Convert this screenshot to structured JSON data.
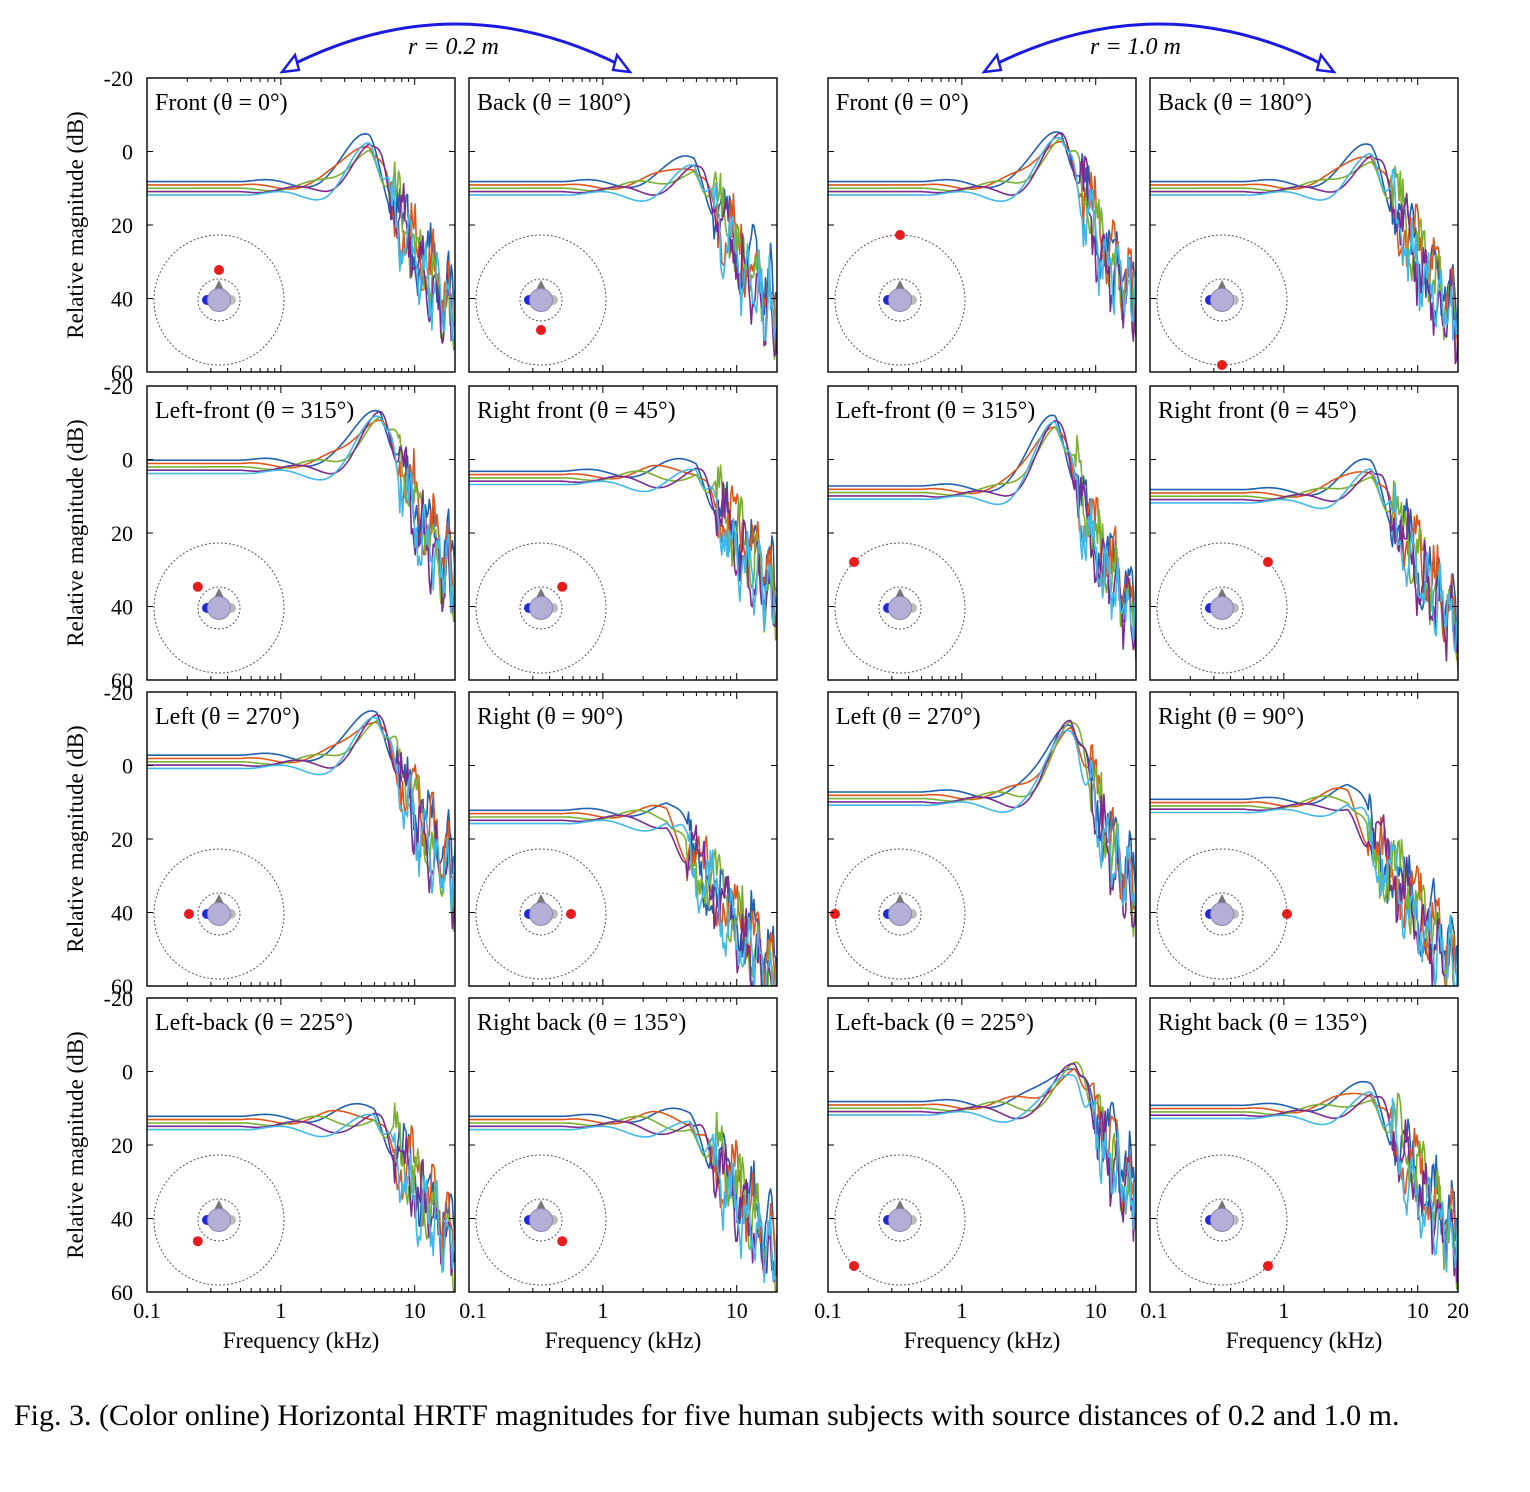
{
  "figure": {
    "distance_labels": [
      "r = 0.2 m",
      "r = 1.0 m"
    ],
    "ylabel": "Relative magnitude (dB)",
    "xlabel": "Frequency (kHz)",
    "x_ticks_primary": [
      "0.1",
      "1",
      "10"
    ],
    "x_tick_extra": "20",
    "y_ticks": [
      "-20",
      "0",
      "20",
      "40",
      "60"
    ]
  },
  "chart_data": {
    "type": "line",
    "xscale": "log",
    "x_unit": "kHz",
    "xlim": [
      0.1,
      20
    ],
    "ylim_top_to_bottom": [
      -20,
      60
    ],
    "y_axis_inverted": true,
    "subjects": 5,
    "series_colors": [
      "#2060b0",
      "#e0561a",
      "#7ab030",
      "#7a2a90",
      "#40b8e8"
    ],
    "grid": false,
    "distances": [
      {
        "label": "r = 0.2 m",
        "panels": [
          {
            "title": "Front (θ = 0°)",
            "theta": 0,
            "base": 10,
            "peak_f": 4.6,
            "peak_db": -2
          },
          {
            "title": "Back (θ = 180°)",
            "theta": 180,
            "base": 10,
            "peak_f": 4.8,
            "peak_db": 4
          },
          {
            "title": "Left-front (θ = 315°)",
            "theta": 315,
            "base": 2,
            "peak_f": 5.5,
            "peak_db": -12
          },
          {
            "title": "Right front (θ = 45°)",
            "theta": 45,
            "base": 5,
            "peak_f": 5.0,
            "peak_db": 3
          },
          {
            "title": "Left (θ = 270°)",
            "theta": 270,
            "base": -1,
            "peak_f": 5.2,
            "peak_db": -13
          },
          {
            "title": "Right (θ = 90°)",
            "theta": 90,
            "base": 14,
            "peak_f": 3.0,
            "peak_db": 14
          },
          {
            "title": "Left-back (θ = 225°)",
            "theta": 225,
            "base": 14,
            "peak_f": 5.0,
            "peak_db": 12
          },
          {
            "title": "Right back (θ = 135°)",
            "theta": 135,
            "base": 14,
            "peak_f": 4.5,
            "peak_db": 14
          }
        ]
      },
      {
        "label": "r = 1.0 m",
        "panels": [
          {
            "title": "Front (θ = 0°)",
            "theta": 0,
            "base": 10,
            "peak_f": 5.5,
            "peak_db": -4
          },
          {
            "title": "Back (θ = 180°)",
            "theta": 180,
            "base": 10,
            "peak_f": 4.5,
            "peak_db": 1
          },
          {
            "title": "Left-front (θ = 315°)",
            "theta": 315,
            "base": 9,
            "peak_f": 5.0,
            "peak_db": -10
          },
          {
            "title": "Right front (θ = 45°)",
            "theta": 45,
            "base": 10,
            "peak_f": 4.5,
            "peak_db": 3
          },
          {
            "title": "Left (θ = 270°)",
            "theta": 270,
            "base": 9,
            "peak_f": 6.5,
            "peak_db": -11
          },
          {
            "title": "Right (θ = 90°)",
            "theta": 90,
            "base": 11,
            "peak_f": 3.0,
            "peak_db": 9
          },
          {
            "title": "Left-back (θ = 225°)",
            "theta": 225,
            "base": 10,
            "peak_f": 7.0,
            "peak_db": -1
          },
          {
            "title": "Right back (θ = 135°)",
            "theta": 135,
            "base": 11,
            "peak_f": 4.5,
            "peak_db": 6
          }
        ]
      }
    ]
  },
  "caption": "Fig. 3. (Color online) Horizontal HRTF magnitudes for five human subjects with source distances of 0.2 and 1.0 m."
}
